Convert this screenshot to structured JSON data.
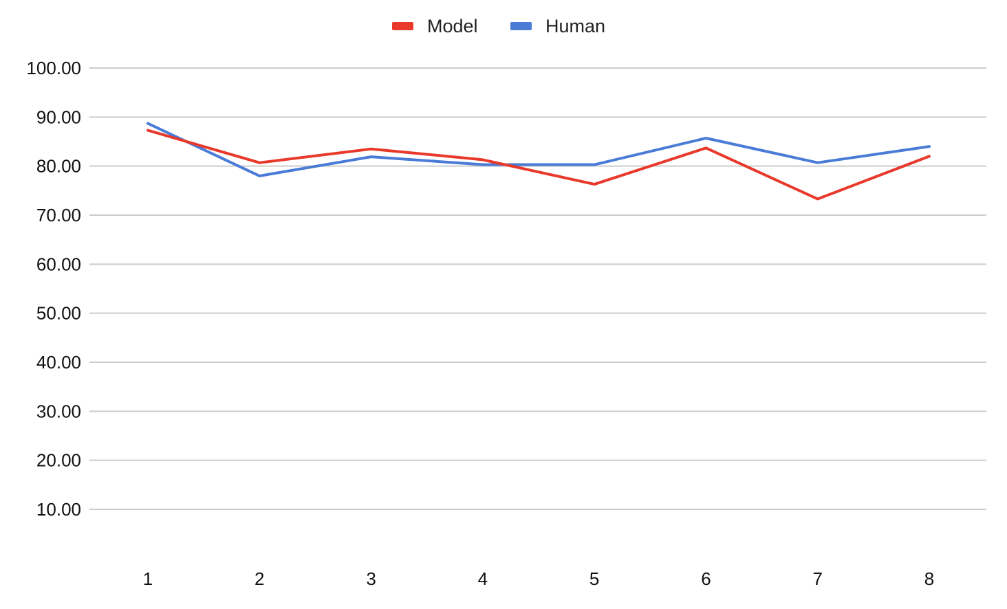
{
  "chart_data": {
    "type": "line",
    "title": "",
    "xlabel": "",
    "ylabel": "",
    "categories": [
      "1",
      "2",
      "3",
      "4",
      "5",
      "6",
      "7",
      "8"
    ],
    "y_ticks": [
      "10.00",
      "20.00",
      "30.00",
      "40.00",
      "50.00",
      "60.00",
      "70.00",
      "80.00",
      "90.00",
      "100.00"
    ],
    "ylim": [
      0,
      100
    ],
    "grid": true,
    "legend_position": "top-center",
    "series": [
      {
        "name": "Model",
        "color": "#e8392b",
        "values": [
          87.3,
          80.7,
          83.5,
          81.3,
          76.3,
          83.7,
          73.3,
          82.0
        ]
      },
      {
        "name": "Human",
        "color": "#4a7bd6",
        "values": [
          88.7,
          78.0,
          81.9,
          80.3,
          80.3,
          85.7,
          80.7,
          84.0
        ]
      }
    ]
  }
}
